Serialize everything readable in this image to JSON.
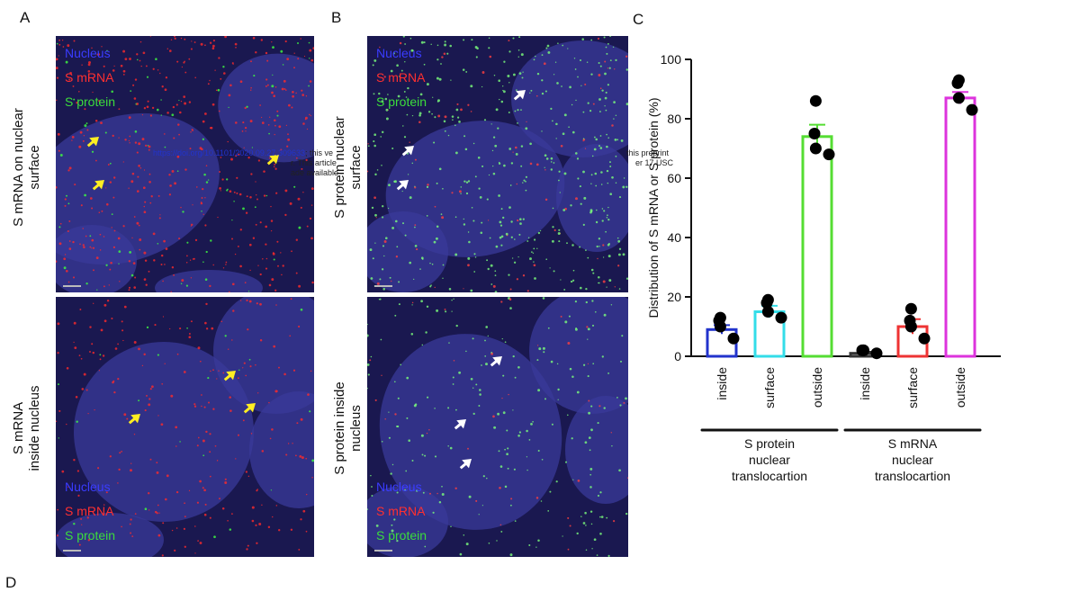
{
  "panels": {
    "a": "A",
    "b": "B",
    "c": "C",
    "d": "D"
  },
  "micrographs": {
    "legend": {
      "nucleus": "Nucleus",
      "smrna": "S mRNA",
      "sprotein": "S protein"
    },
    "row_labels": {
      "a_top": [
        "S mRNA on nuclear",
        "surface"
      ],
      "a_bottom": [
        "S mRNA",
        "inside nucleus"
      ],
      "b_top": [
        "S protein nuclear",
        "surface"
      ],
      "b_bottom": [
        "S protein inside",
        "nucleus"
      ]
    },
    "overlay": {
      "line1_link": "https://doi.org/10.1101/2020.09.27.309633",
      "line1_text": "; this ve",
      "line1_tail": "this preprint",
      "line2_text": "r. This article",
      "line2_tail": "er 17 USC",
      "line3_text": "ade available"
    }
  },
  "colors": {
    "nucleus": "#3a3cff",
    "smrna": "#ff3030",
    "sprotein": "#3cdc3c",
    "bar_inside_protein": "#2233cc",
    "bar_surface_protein": "#33dde8",
    "bar_outside_protein": "#55dd33",
    "bar_inside_mrna": "#333333",
    "bar_surface_mrna": "#ee3333",
    "bar_outside_mrna": "#dd33dd"
  },
  "chart_data": {
    "type": "bar",
    "title": "",
    "ylabel": "Distribution of S mRNA or S protein (%)",
    "xlabel": "",
    "ylim": [
      0,
      100
    ],
    "yticks": [
      0,
      20,
      40,
      60,
      80,
      100
    ],
    "categories": [
      "inside",
      "surface",
      "outside",
      "inside",
      "surface",
      "outside"
    ],
    "values": [
      9,
      15,
      74,
      1,
      10,
      87
    ],
    "errors": [
      1.5,
      2,
      4,
      0.5,
      2.5,
      2
    ],
    "points": [
      [
        13,
        12,
        10,
        6
      ],
      [
        19,
        18,
        15,
        13
      ],
      [
        86,
        75,
        70,
        68
      ],
      [
        2,
        2,
        2,
        1
      ],
      [
        16,
        12,
        10,
        6
      ],
      [
        93,
        92,
        87,
        83
      ]
    ],
    "groups": [
      {
        "label": [
          "S protein",
          "nuclear",
          "translocartion"
        ],
        "from": 0,
        "to": 2
      },
      {
        "label": [
          "S mRNA",
          "nuclear",
          "translocartion"
        ],
        "from": 3,
        "to": 5
      }
    ]
  }
}
